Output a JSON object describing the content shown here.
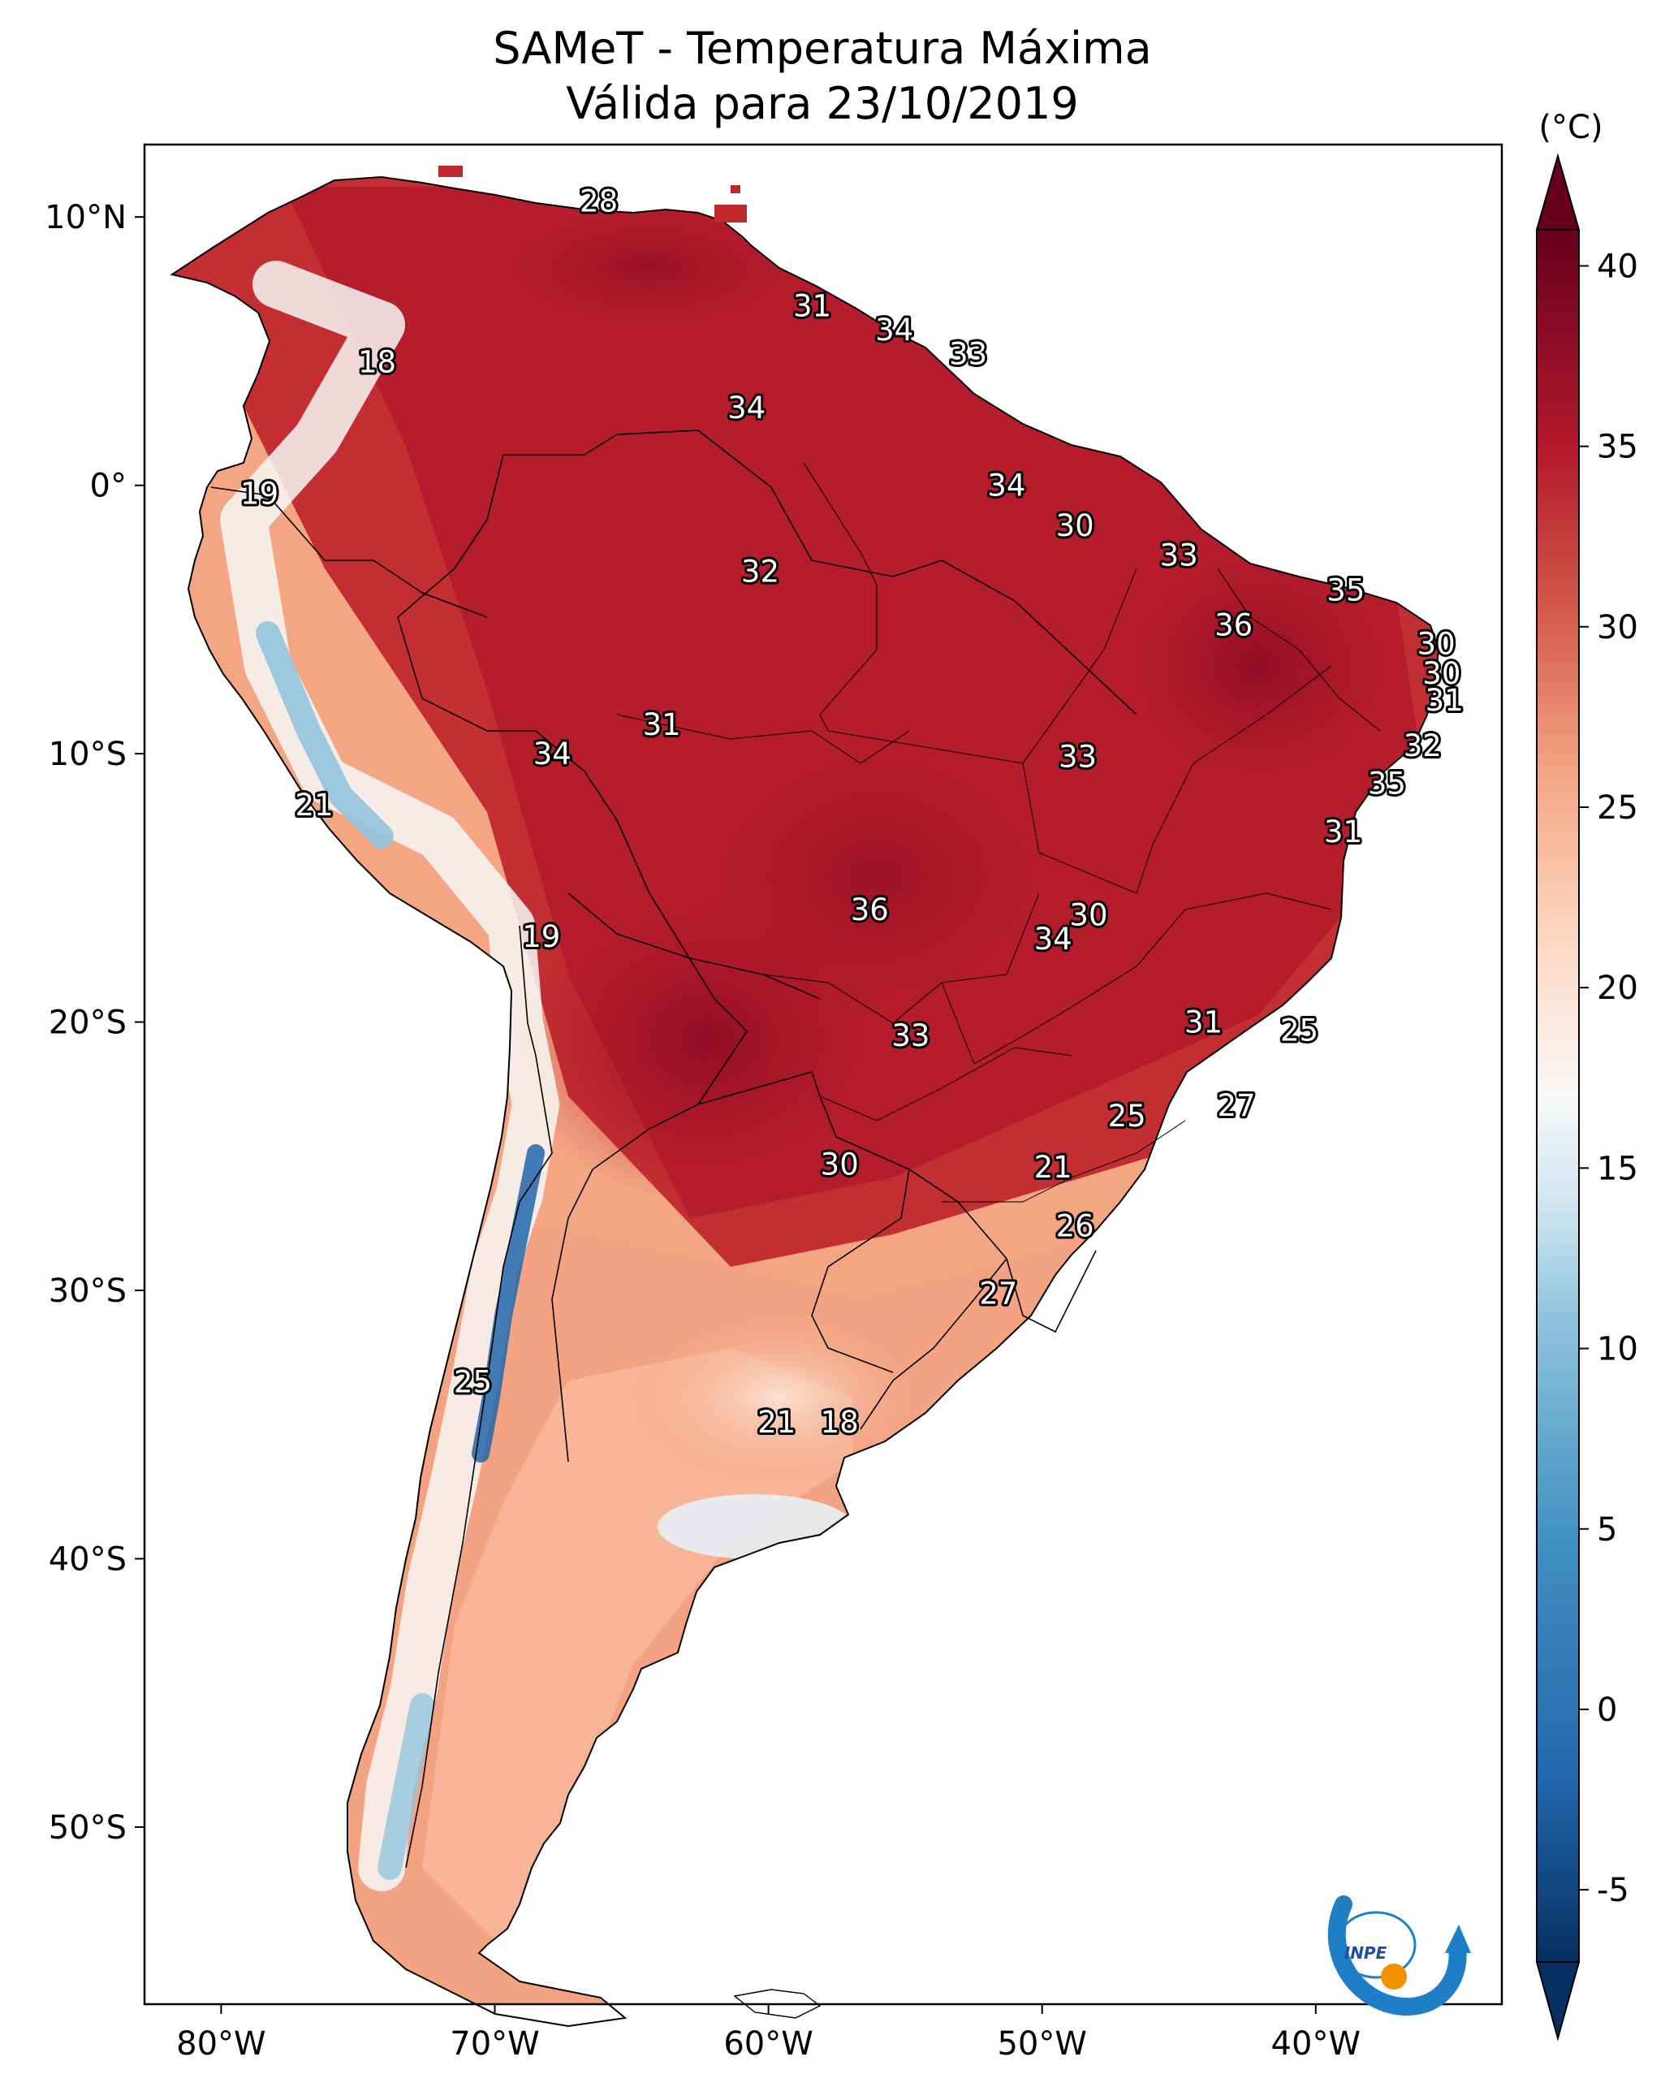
{
  "title": {
    "line1": "SAMeT - Temperatura Máxima",
    "line2": "Válida para 23/10/2019"
  },
  "map": {
    "lon_ticks": [
      "80°W",
      "70°W",
      "60°W",
      "50°W",
      "40°W"
    ],
    "lat_ticks": [
      "10°N",
      "0°",
      "10°S",
      "20°S",
      "30°S",
      "40°S",
      "50°S"
    ],
    "extent": {
      "lon_min": -82.8,
      "lon_max": -33.2,
      "lat_min": -56.6,
      "lat_max": 12.7
    },
    "labels": [
      {
        "value": "28",
        "lon": -66.2,
        "lat": 10.6
      },
      {
        "value": "18",
        "lon": -74.3,
        "lat": 4.6
      },
      {
        "value": "31",
        "lon": -58.4,
        "lat": 6.7
      },
      {
        "value": "34",
        "lon": -55.4,
        "lat": 5.8
      },
      {
        "value": "33",
        "lon": -52.7,
        "lat": 4.9
      },
      {
        "value": "34",
        "lon": -60.8,
        "lat": 2.9
      },
      {
        "value": "19",
        "lon": -78.6,
        "lat": -0.3
      },
      {
        "value": "34",
        "lon": -51.3,
        "lat": 0.0
      },
      {
        "value": "30",
        "lon": -48.8,
        "lat": -1.5
      },
      {
        "value": "32",
        "lon": -60.3,
        "lat": -3.2
      },
      {
        "value": "33",
        "lon": -45.0,
        "lat": -2.6
      },
      {
        "value": "35",
        "lon": -38.9,
        "lat": -3.9
      },
      {
        "value": "36",
        "lon": -43.0,
        "lat": -5.2
      },
      {
        "value": "30",
        "lon": -35.6,
        "lat": -5.9
      },
      {
        "value": "30",
        "lon": -35.4,
        "lat": -7.0
      },
      {
        "value": "31",
        "lon": -35.3,
        "lat": -8.0
      },
      {
        "value": "31",
        "lon": -63.9,
        "lat": -8.9
      },
      {
        "value": "34",
        "lon": -67.9,
        "lat": -10.0
      },
      {
        "value": "33",
        "lon": -48.7,
        "lat": -10.1
      },
      {
        "value": "32",
        "lon": -36.1,
        "lat": -9.7
      },
      {
        "value": "21",
        "lon": -76.6,
        "lat": -11.9
      },
      {
        "value": "35",
        "lon": -37.4,
        "lat": -11.1
      },
      {
        "value": "31",
        "lon": -39.0,
        "lat": -12.9
      },
      {
        "value": "36",
        "lon": -56.3,
        "lat": -15.8
      },
      {
        "value": "30",
        "lon": -48.3,
        "lat": -16.0
      },
      {
        "value": "34",
        "lon": -49.6,
        "lat": -16.9
      },
      {
        "value": "19",
        "lon": -68.3,
        "lat": -16.8
      },
      {
        "value": "31",
        "lon": -44.1,
        "lat": -20.0
      },
      {
        "value": "25",
        "lon": -40.6,
        "lat": -20.3
      },
      {
        "value": "33",
        "lon": -54.8,
        "lat": -20.5
      },
      {
        "value": "27",
        "lon": -42.9,
        "lat": -23.1
      },
      {
        "value": "25",
        "lon": -46.9,
        "lat": -23.5
      },
      {
        "value": "30",
        "lon": -57.4,
        "lat": -25.3
      },
      {
        "value": "21",
        "lon": -49.6,
        "lat": -25.4
      },
      {
        "value": "26",
        "lon": -48.8,
        "lat": -27.6
      },
      {
        "value": "27",
        "lon": -51.6,
        "lat": -30.1
      },
      {
        "value": "25",
        "lon": -70.8,
        "lat": -33.4
      },
      {
        "value": "21",
        "lon": -59.7,
        "lat": -34.9
      },
      {
        "value": "18",
        "lon": -57.4,
        "lat": -34.9
      }
    ]
  },
  "colorbar": {
    "unit": "(°C)",
    "min": -7,
    "max": 41,
    "ticks": [
      "40",
      "35",
      "30",
      "25",
      "20",
      "15",
      "10",
      "5",
      "0",
      "-5"
    ],
    "stops": [
      {
        "value": -7,
        "color": "#053061"
      },
      {
        "value": -2,
        "color": "#2166ac"
      },
      {
        "value": 5,
        "color": "#4393c3"
      },
      {
        "value": 11,
        "color": "#92c5de"
      },
      {
        "value": 14,
        "color": "#d1e5f0"
      },
      {
        "value": 17,
        "color": "#f7f7f7"
      },
      {
        "value": 21,
        "color": "#fddbc7"
      },
      {
        "value": 26,
        "color": "#f4a582"
      },
      {
        "value": 30,
        "color": "#d6604d"
      },
      {
        "value": 35,
        "color": "#b2182b"
      },
      {
        "value": 41,
        "color": "#67001f"
      }
    ]
  },
  "logo": {
    "text": "INPE"
  }
}
